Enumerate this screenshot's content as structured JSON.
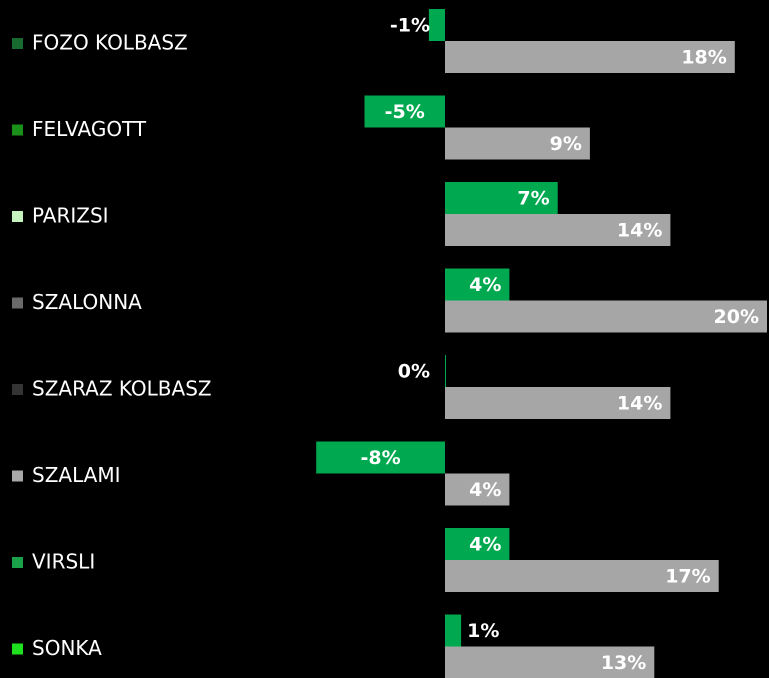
{
  "chart_data": {
    "type": "bar",
    "orientation": "horizontal",
    "categories": [
      "FOZO KOLBASZ",
      "FELVAGOTT",
      "PARIZSI",
      "SZALONNA",
      "SZARAZ KOLBASZ",
      "SZALAMI",
      "VIRSLI",
      "SONKA"
    ],
    "marker_colors": [
      "#186b2e",
      "#1a8f1a",
      "#c6f2bd",
      "#6a6a6a",
      "#343434",
      "#a8a8a8",
      "#1aa24a",
      "#1fe01f"
    ],
    "series": [
      {
        "color": "#00a94f",
        "values": [
          -1,
          -5,
          7,
          4,
          0,
          -8,
          4,
          1
        ],
        "value_labels": [
          "-1%",
          "-5%",
          "7%",
          "4%",
          "0%",
          "-8%",
          "4%",
          "1%"
        ]
      },
      {
        "color": "#a6a6a6",
        "values": [
          18,
          9,
          14,
          20,
          14,
          4,
          17,
          13
        ],
        "value_labels": [
          "18%",
          "9%",
          "14%",
          "20%",
          "14%",
          "4%",
          "17%",
          "13%"
        ]
      }
    ]
  }
}
